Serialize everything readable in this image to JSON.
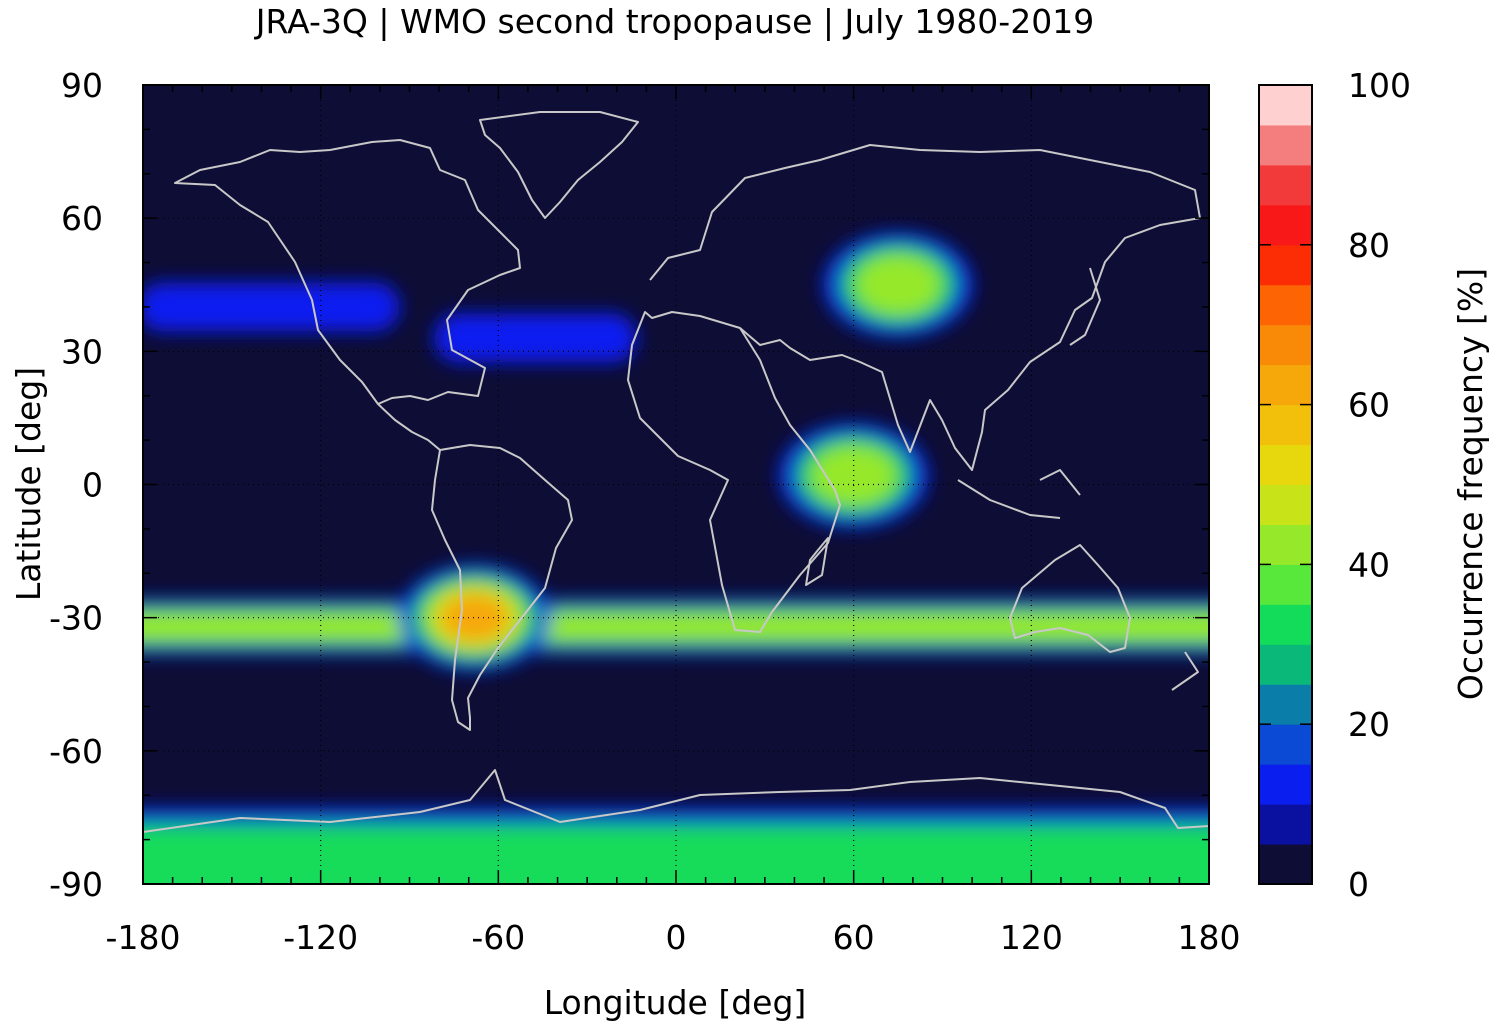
{
  "chart_data": {
    "type": "heatmap",
    "title": "JRA-3Q | WMO second tropopause | July 1980-2019",
    "xlabel": "Longitude [deg]",
    "ylabel": "Latitude [deg]",
    "xlim": [
      -180,
      180
    ],
    "ylim": [
      -90,
      90
    ],
    "x_ticks": [
      -180,
      -120,
      -60,
      0,
      60,
      120,
      180
    ],
    "y_ticks": [
      90,
      60,
      30,
      0,
      -30,
      -60,
      -90
    ],
    "x_tick_labels": [
      "-180",
      "-120",
      "-60",
      "0",
      "60",
      "120",
      "180"
    ],
    "y_tick_labels": [
      "90",
      "60",
      "30",
      "0",
      "-30",
      "-60",
      "-90"
    ],
    "grid": true,
    "background_value": 2,
    "colorbar": {
      "label": "Occurrence frequency [%]",
      "range": [
        0,
        100
      ],
      "step": 5,
      "tick_values": [
        0,
        20,
        40,
        60,
        80,
        100
      ],
      "tick_labels": [
        "0",
        "20",
        "40",
        "60",
        "80",
        "100"
      ],
      "colors": [
        "#0d0d36",
        "#0a10a0",
        "#0a1ef0",
        "#0a4ad4",
        "#0a7ea8",
        "#0ab87a",
        "#12dc5a",
        "#58e83c",
        "#96e82a",
        "#c8e418",
        "#e6d80c",
        "#f2c00a",
        "#f6a80a",
        "#f88a08",
        "#fc6404",
        "#fc2c04",
        "#f81818",
        "#f23a3a",
        "#f47e7e",
        "#ffd0d0"
      ]
    },
    "features": [
      {
        "name": "Southern Hemisphere subtropical band",
        "lon": [
          -180,
          180
        ],
        "lat_center": -32,
        "peak": 40
      },
      {
        "name": "Andes maximum",
        "lon": -68,
        "lat": -30,
        "peak": 60
      },
      {
        "name": "Eurasian band maximum",
        "lon": 75,
        "lat": 45,
        "peak": 45
      },
      {
        "name": "Indian Ocean maximum",
        "lon": 60,
        "lat": 2,
        "peak": 45
      },
      {
        "name": "North Pacific band",
        "lon": [
          -175,
          -100
        ],
        "lat_center": 40,
        "peak": 15
      },
      {
        "name": "North Atlantic band",
        "lon": [
          -75,
          -20
        ],
        "lat_center": 33,
        "peak": 15
      },
      {
        "name": "Antarctic region",
        "lat": [
          -90,
          -72
        ],
        "peak": 35
      }
    ],
    "coastline_color": "#c8c8c8"
  }
}
